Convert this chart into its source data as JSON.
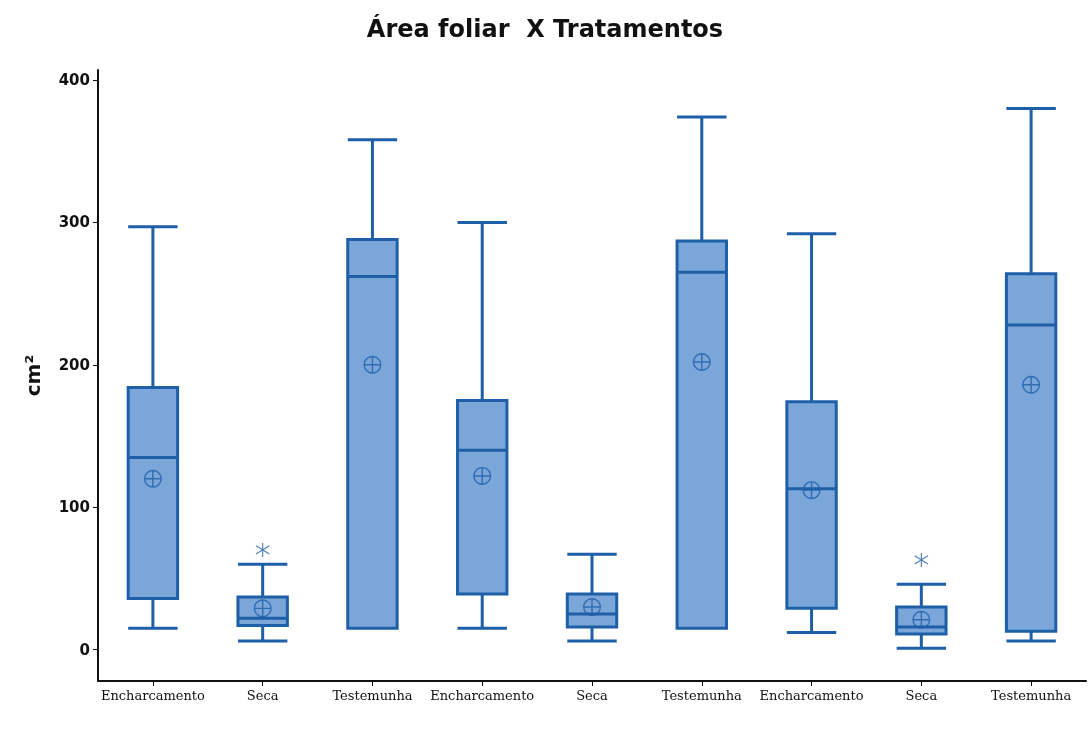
{
  "chart_data": {
    "type": "box",
    "title": "Área foliar  X Tratamentos",
    "ylabel": "cm²",
    "categories": [
      "Encharcamento",
      "Seca",
      "Testemunha",
      "Encharcamento",
      "Seca",
      "Testemunha",
      "Encharcamento",
      "Seca",
      "Testemunha"
    ],
    "color": "#7ba6d9",
    "boxes": [
      {
        "low": 15,
        "q1": 36,
        "median": 135,
        "q3": 184,
        "high": 297,
        "mean": 120
      },
      {
        "low": 6,
        "q1": 17,
        "median": 22,
        "q3": 37,
        "high": 60,
        "mean": 29,
        "outliers": [
          70
        ]
      },
      {
        "low": 15,
        "q1": 15,
        "median": 262,
        "q3": 288,
        "high": 358,
        "mean": 200
      },
      {
        "low": 15,
        "q1": 39,
        "median": 140,
        "q3": 175,
        "high": 300,
        "mean": 122
      },
      {
        "low": 6,
        "q1": 16,
        "median": 25,
        "q3": 39,
        "high": 67,
        "mean": 30
      },
      {
        "low": 15,
        "q1": 15,
        "median": 265,
        "q3": 287,
        "high": 374,
        "mean": 202
      },
      {
        "low": 12,
        "q1": 29,
        "median": 113,
        "q3": 174,
        "high": 292,
        "mean": 112
      },
      {
        "low": 1,
        "q1": 11,
        "median": 16,
        "q3": 30,
        "high": 46,
        "mean": 21,
        "outliers": [
          63
        ]
      },
      {
        "low": 6,
        "q1": 13,
        "median": 228,
        "q3": 264,
        "high": 380,
        "mean": 186
      }
    ],
    "ylim": [
      -22,
      407
    ],
    "yticks": [
      0,
      100,
      200,
      300,
      400
    ],
    "grid": false
  }
}
